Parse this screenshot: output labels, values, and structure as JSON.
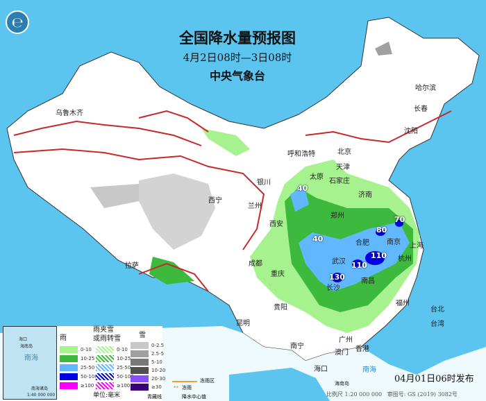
{
  "header": {
    "title": "全国降水量预报图",
    "period": "4月2日08时—3日08时",
    "agency": "中央气象台"
  },
  "logo": {
    "icon": "cma-logo-icon"
  },
  "cities": [
    "乌鲁木齐",
    "哈尔滨",
    "长春",
    "沈阳",
    "呼和浩特",
    "北京",
    "天津",
    "银川",
    "太原",
    "石家庄",
    "济南",
    "西宁",
    "兰州",
    "西安",
    "郑州",
    "合肥",
    "南京",
    "上海",
    "成都",
    "武汉",
    "杭州",
    "拉萨",
    "重庆",
    "长沙",
    "南昌",
    "福州",
    "贵阳",
    "台北",
    "昆明",
    "台湾",
    "广州",
    "南宁",
    "香港",
    "澳门",
    "海口"
  ],
  "precip_centers": [
    "40",
    "40",
    "80",
    "70",
    "110",
    "110",
    "130"
  ],
  "legend": {
    "rain": {
      "title": "雨",
      "items": [
        {
          "label": "0-10",
          "color": "#a6f28f"
        },
        {
          "label": "10-25",
          "color": "#3dba3d"
        },
        {
          "label": "25-50",
          "color": "#61b8ff"
        },
        {
          "label": "50-100",
          "color": "#0000e1"
        },
        {
          "label": "≥100",
          "color": "#fa00fa"
        }
      ]
    },
    "sleet": {
      "title1": "雨夹雪",
      "title2": "或雨转雪",
      "items": [
        "0-10",
        "10-25",
        "25-50",
        "50-100",
        "≥100"
      ]
    },
    "snow": {
      "title": "雪",
      "items": [
        {
          "label": "0-2.5",
          "color": "#c8c8c8"
        },
        {
          "label": "2.5-5",
          "color": "#a0a0a0"
        },
        {
          "label": "5-10",
          "color": "#787878"
        },
        {
          "label": "10-20",
          "color": "#505050"
        },
        {
          "label": "20-30",
          "color": "#8a4dff"
        },
        {
          "label": "≥30",
          "color": "#3c0078"
        }
      ]
    },
    "unit": "单位:毫米",
    "freezing_area": "冻雨区",
    "freezing_rain": "冻雨",
    "qinghai_line": "青藏线",
    "center": "降水中心值"
  },
  "inset": {
    "sea": "南海",
    "island": "海南岛",
    "city": "海口",
    "note": "南海诸岛",
    "scale": "1:40 000 000"
  },
  "sea_labels": [
    "南海",
    "海南岛"
  ],
  "footer": {
    "published": "04月01日06时发布",
    "scale": "比例尺 1:20 000 000",
    "approval": "审图号: GS (2019) 3082号"
  }
}
